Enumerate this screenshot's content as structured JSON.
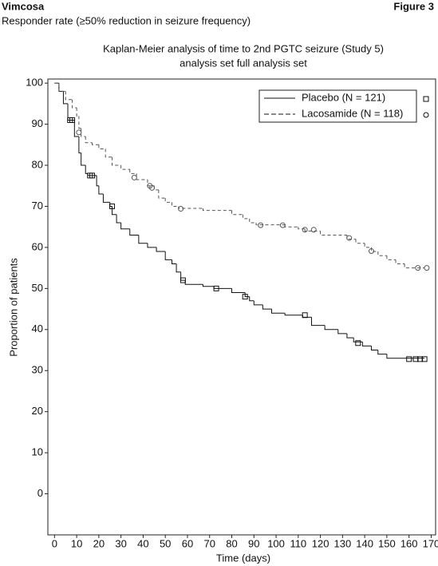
{
  "header": {
    "brand": "Vimcosa",
    "figure": "Figure 3",
    "subtitle": "Responder rate (≥50% reduction in seizure frequency)"
  },
  "chart_data": {
    "type": "step",
    "title": [
      "Kaplan-Meier analysis of time to 2nd PGTC seizure (Study 5)",
      "analysis set full analysis set"
    ],
    "x_label": "Time (days)",
    "y_label": "Proportion of patients",
    "xlim": [
      -3,
      172
    ],
    "ylim": [
      -10,
      101
    ],
    "xticks": [
      0,
      10,
      20,
      30,
      40,
      50,
      60,
      70,
      80,
      90,
      100,
      110,
      120,
      130,
      140,
      150,
      160,
      170
    ],
    "yticks": [
      0,
      10,
      20,
      30,
      40,
      50,
      60,
      70,
      80,
      90,
      100
    ],
    "legend": "top-right",
    "series": [
      {
        "name": "Placebo (N = 121)",
        "color": "#111111",
        "dash": "solid",
        "marker": "square",
        "x": [
          0,
          2,
          4,
          6,
          9,
          11,
          12,
          14,
          15,
          19,
          20,
          22,
          25,
          26,
          28,
          30,
          34,
          38,
          42,
          46,
          50,
          53,
          55,
          57,
          59,
          67,
          72,
          80,
          86,
          88,
          90,
          94,
          98,
          104,
          112,
          116,
          122,
          128,
          132,
          135,
          139,
          143,
          146,
          150,
          167
        ],
        "values": [
          100,
          98,
          95,
          91,
          87,
          83,
          80,
          78,
          77.5,
          75,
          73,
          71,
          70,
          68,
          66,
          64.5,
          63,
          61,
          60,
          59,
          57,
          56,
          54,
          52,
          51,
          50.5,
          50,
          49,
          48,
          47,
          46,
          45,
          44,
          43.5,
          43,
          41,
          40,
          39,
          38,
          37,
          36,
          35,
          34,
          33,
          33
        ],
        "censored_x": [
          7,
          8,
          16,
          17,
          26,
          58,
          73,
          86,
          113,
          137,
          160,
          163,
          165,
          167
        ],
        "censored_values": [
          91,
          91,
          77.5,
          77.5,
          70,
          52,
          50,
          48,
          43.5,
          36.7,
          32.8,
          32.8,
          32.8,
          32.8
        ]
      },
      {
        "name": "Lacosamide (N = 118)",
        "color": "#555555",
        "dash": "dashed",
        "marker": "circle",
        "x": [
          0,
          2,
          5,
          8,
          10,
          11,
          12,
          14,
          17,
          20,
          23,
          26,
          30,
          34,
          37,
          42,
          45,
          47,
          50,
          53,
          56,
          67,
          80,
          85,
          88,
          91,
          104,
          110,
          113,
          120,
          132,
          136,
          140,
          143,
          146,
          150,
          154,
          158,
          167
        ],
        "values": [
          100,
          98,
          96,
          94,
          92,
          89,
          87,
          85.5,
          85,
          84,
          82,
          80,
          79,
          78,
          76.5,
          75,
          74,
          72,
          71,
          70,
          69.5,
          69,
          68,
          67,
          66,
          65.5,
          65,
          64.5,
          64,
          63,
          62,
          61,
          60,
          59,
          58,
          57,
          56,
          55,
          55
        ],
        "censored_x": [
          11,
          36,
          43,
          44,
          57,
          93,
          103,
          113,
          117,
          133,
          143,
          164,
          168
        ],
        "censored_values": [
          88,
          77,
          75,
          74.5,
          69.4,
          65.4,
          65.4,
          64.3,
          64.3,
          62.3,
          59.1,
          55,
          55
        ]
      }
    ]
  }
}
